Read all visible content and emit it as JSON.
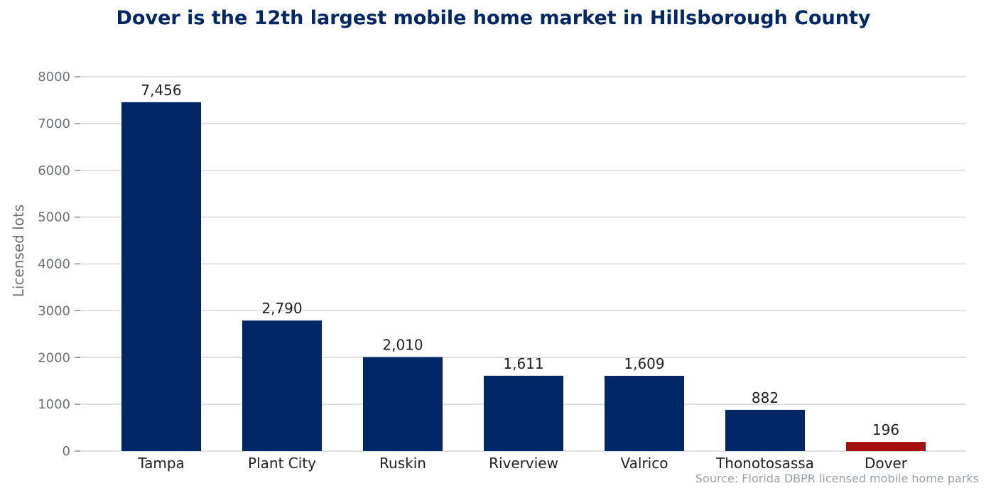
{
  "chart_data": {
    "type": "bar",
    "title": "Dover is the 12th largest mobile home market in Hillsborough County",
    "xlabel": "",
    "ylabel": "Licensed lots",
    "categories": [
      "Tampa",
      "Plant City",
      "Ruskin",
      "Riverview",
      "Valrico",
      "Thonotosassa",
      "Dover"
    ],
    "values": [
      7456,
      2790,
      2010,
      1611,
      1609,
      882,
      196
    ],
    "data_labels": [
      "7,456",
      "2,790",
      "2,010",
      "1,611",
      "1,609",
      "882",
      "196"
    ],
    "highlight_category": "Dover",
    "ylim": [
      0,
      8000
    ],
    "yticks": [
      0,
      1000,
      2000,
      3000,
      4000,
      5000,
      6000,
      7000,
      8000
    ],
    "grid": "horizontal",
    "legend": "none",
    "colors": {
      "bar": "#002868",
      "highlight": "#a50e0e",
      "title": "#002868",
      "grid": "#d9d9d9"
    },
    "source": "Source: Florida DBPR licensed mobile home parks"
  }
}
